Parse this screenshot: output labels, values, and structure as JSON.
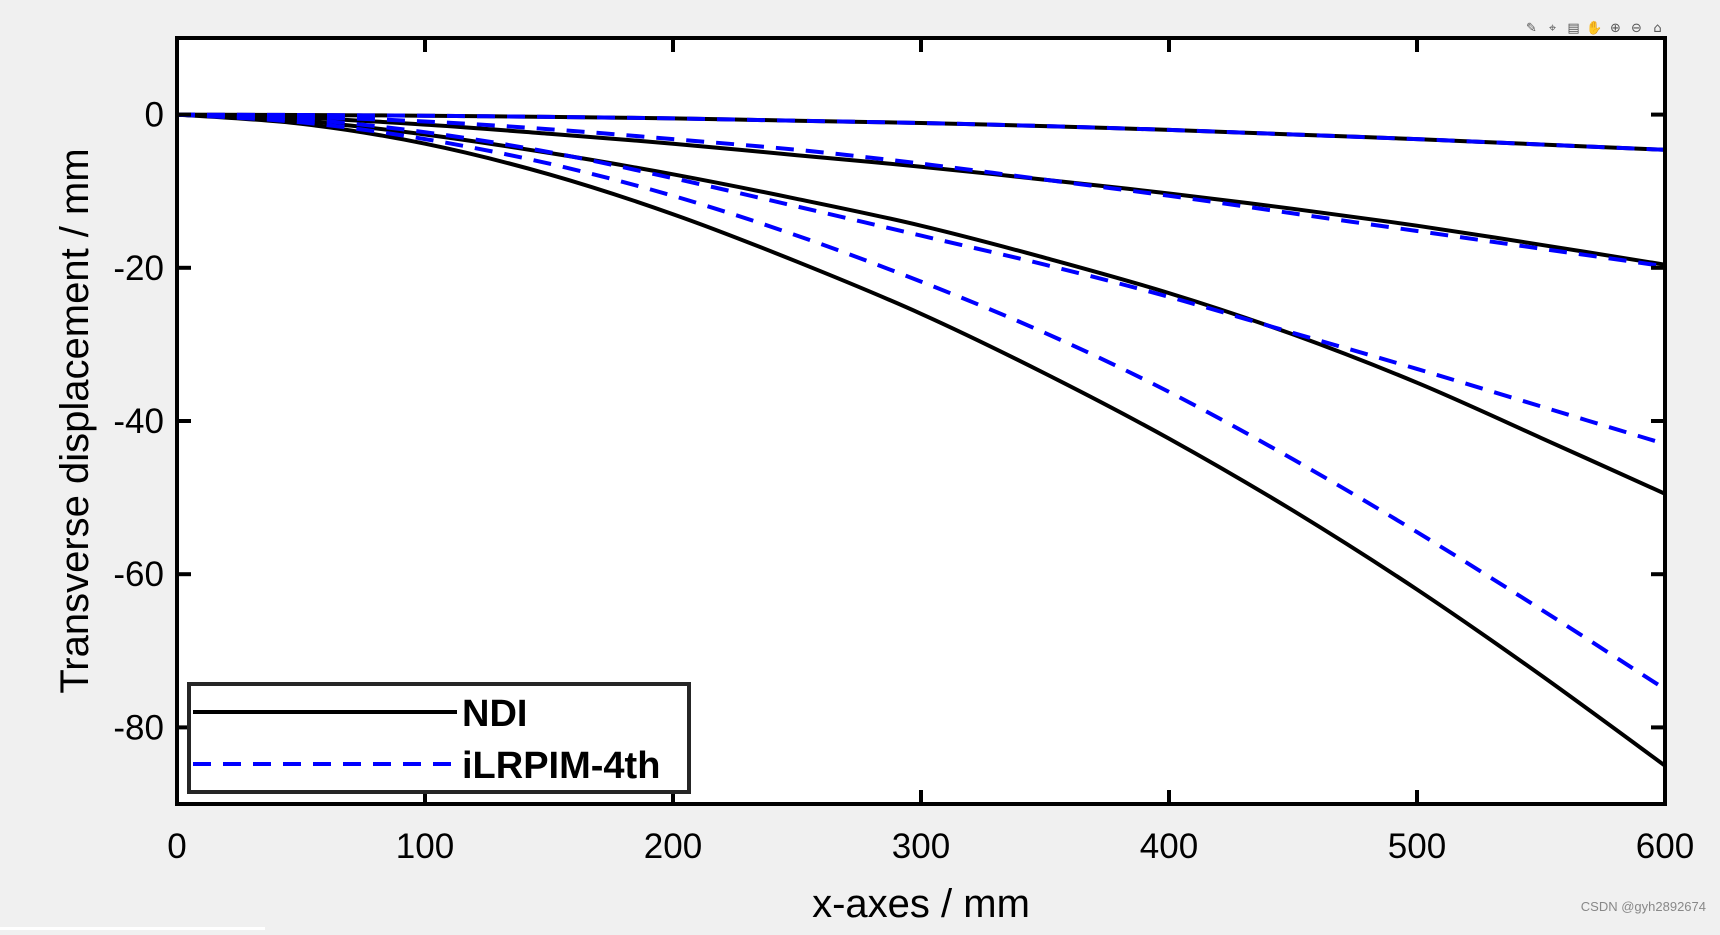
{
  "toolbar": {
    "items": [
      {
        "name": "brush-icon",
        "glyph": "✎"
      },
      {
        "name": "data-tip-icon",
        "glyph": "⌖"
      },
      {
        "name": "export-icon",
        "glyph": "▤"
      },
      {
        "name": "pan-icon",
        "glyph": "✋"
      },
      {
        "name": "zoom-in-icon",
        "glyph": "⊕"
      },
      {
        "name": "zoom-out-icon",
        "glyph": "⊖"
      },
      {
        "name": "home-icon",
        "glyph": "⌂"
      }
    ]
  },
  "watermark": "CSDN @gyh2892674",
  "chart_data": {
    "type": "line",
    "xlabel": "x-axes / mm",
    "ylabel": "Transverse displacement / mm",
    "xlim": [
      0,
      600
    ],
    "ylim": [
      -90,
      10
    ],
    "xticks": [
      0,
      100,
      200,
      300,
      400,
      500,
      600
    ],
    "yticks": [
      0,
      -20,
      -40,
      -60,
      -80
    ],
    "legend": {
      "placement": "bottom-left",
      "entries": [
        {
          "label": "NDI",
          "color": "#000000",
          "style": "solid"
        },
        {
          "label": "iLRPIM-4th",
          "color": "#0000ff",
          "style": "dashed"
        }
      ]
    },
    "series": [
      {
        "group": "NDI",
        "color": "#000000",
        "style": "solid",
        "x": [
          0,
          50,
          100,
          150,
          200,
          250,
          300,
          350,
          400,
          450,
          500,
          550,
          600
        ],
        "y": [
          0,
          -0.05,
          -0.15,
          -0.3,
          -0.5,
          -0.8,
          -1.1,
          -1.5,
          -2,
          -2.6,
          -3.2,
          -3.9,
          -4.6
        ]
      },
      {
        "group": "NDI",
        "color": "#000000",
        "style": "solid",
        "x": [
          0,
          50,
          100,
          150,
          200,
          250,
          300,
          350,
          400,
          450,
          500,
          550,
          600
        ],
        "y": [
          0,
          -0.4,
          -1.3,
          -2.5,
          -3.8,
          -5.3,
          -6.8,
          -8.5,
          -10.3,
          -12.3,
          -14.5,
          -17,
          -19.6
        ]
      },
      {
        "group": "NDI",
        "color": "#000000",
        "style": "solid",
        "x": [
          0,
          50,
          100,
          150,
          200,
          250,
          300,
          350,
          400,
          450,
          500,
          550,
          600
        ],
        "y": [
          0,
          -0.8,
          -2.6,
          -5,
          -7.8,
          -11,
          -14.5,
          -18.7,
          -23.3,
          -28.7,
          -35,
          -42.2,
          -49.5
        ]
      },
      {
        "group": "NDI",
        "color": "#000000",
        "style": "solid",
        "x": [
          0,
          50,
          100,
          150,
          200,
          250,
          300,
          350,
          400,
          450,
          500,
          550,
          600
        ],
        "y": [
          0,
          -1.2,
          -3.8,
          -7.8,
          -13,
          -19.2,
          -26,
          -33.8,
          -42.3,
          -51.7,
          -62,
          -73.2,
          -85
        ]
      },
      {
        "group": "iLRPIM-4th",
        "color": "#0000ff",
        "style": "dashed",
        "x": [
          0,
          50,
          100,
          150,
          200,
          250,
          300,
          350,
          400,
          450,
          500,
          550,
          600
        ],
        "y": [
          0,
          -0.05,
          -0.15,
          -0.3,
          -0.5,
          -0.8,
          -1.1,
          -1.5,
          -2,
          -2.6,
          -3.2,
          -3.9,
          -4.6
        ]
      },
      {
        "group": "iLRPIM-4th",
        "color": "#0000ff",
        "style": "dashed",
        "x": [
          0,
          50,
          100,
          150,
          200,
          250,
          300,
          350,
          400,
          450,
          500,
          550,
          600
        ],
        "y": [
          0,
          -0.3,
          -0.9,
          -1.9,
          -3.2,
          -4.6,
          -6.4,
          -8.5,
          -10.6,
          -12.9,
          -15.2,
          -17.5,
          -19.8
        ]
      },
      {
        "group": "iLRPIM-4th",
        "color": "#0000ff",
        "style": "dashed",
        "x": [
          0,
          50,
          100,
          150,
          200,
          250,
          300,
          350,
          400,
          450,
          500,
          550,
          600
        ],
        "y": [
          0,
          -0.6,
          -2.3,
          -4.9,
          -8.3,
          -12,
          -15.8,
          -19.6,
          -23.8,
          -28.5,
          -33.2,
          -38.1,
          -43
        ]
      },
      {
        "group": "iLRPIM-4th",
        "color": "#0000ff",
        "style": "dashed",
        "x": [
          0,
          50,
          100,
          150,
          200,
          250,
          300,
          350,
          400,
          450,
          500,
          550,
          600
        ],
        "y": [
          0,
          -1,
          -3.2,
          -6.4,
          -10.6,
          -15.8,
          -21.8,
          -28.5,
          -36.2,
          -45,
          -54.5,
          -64.6,
          -75
        ]
      }
    ]
  }
}
